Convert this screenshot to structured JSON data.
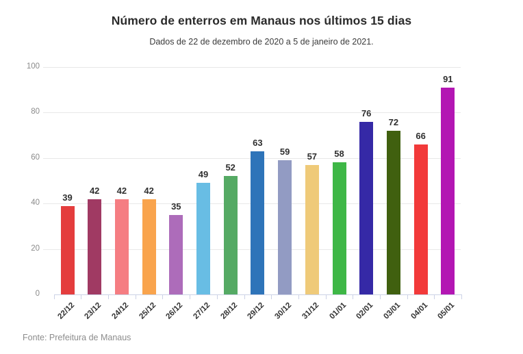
{
  "header": {
    "title": "Número de enterros em Manaus nos últimos 15 dias",
    "subtitle": "Dados de 22 de dezembro de 2020 a 5 de janeiro de 2021."
  },
  "footer": {
    "source": "Fonte: Prefeitura de Manaus"
  },
  "chart_data": {
    "type": "bar",
    "title": "Número de enterros em Manaus nos últimos 15 dias",
    "subtitle": "Dados de 22 de dezembro de 2020 a 5 de janeiro de 2021.",
    "source": "Fonte: Prefeitura de Manaus",
    "categories": [
      "22/12",
      "23/12",
      "24/12",
      "25/12",
      "26/12",
      "27/12",
      "28/12",
      "29/12",
      "30/12",
      "31/12",
      "01/01",
      "02/01",
      "03/01",
      "04/01",
      "05/01"
    ],
    "values": [
      39,
      42,
      42,
      42,
      35,
      49,
      52,
      63,
      59,
      57,
      58,
      76,
      72,
      66,
      91
    ],
    "bar_colors": [
      "#e43d3d",
      "#a03a63",
      "#f57d82",
      "#f9a44d",
      "#ad6cba",
      "#68bde4",
      "#55aa64",
      "#2e74b9",
      "#929bc3",
      "#efca79",
      "#3eb746",
      "#3529a6",
      "#40600f",
      "#f23a3a",
      "#b316b3"
    ],
    "ylim": [
      0,
      100
    ],
    "yticks": [
      0,
      20,
      40,
      60,
      80,
      100
    ],
    "grid": "horizontal",
    "legend": "none",
    "value_labels": true,
    "xlabel": "",
    "ylabel": "",
    "style": {
      "grid_color": "#e8e8e8",
      "axis_color": "#ccd2e6",
      "ytick_label_color": "#8a8a8a",
      "xtick_label_color": "#333333",
      "value_label_color": "#2f2f2f"
    }
  }
}
